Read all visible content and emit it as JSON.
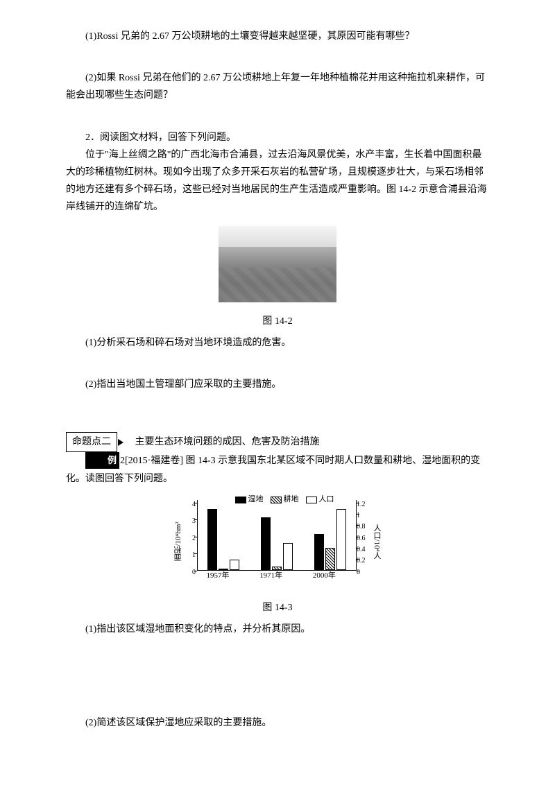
{
  "q1_1": "(1)Rossi 兄弟的 2.67 万公顷耕地的土壤变得越来越坚硬，其原因可能有哪些？",
  "q1_2": "(2)如果 Rossi 兄弟在他们的 2.67 万公顷耕地上年复一年地种植棉花并用这种拖拉机来耕作，可能会出现哪些生态问题？",
  "q2_title": "2．阅读图文材料，回答下列问题。",
  "q2_para": "位于\"海上丝绸之路\"的广西北海市合浦县，过去沿海风景优美，水产丰富，生长着中国面积最大的珍稀植物红树林。现如今出现了众多开采石灰岩的私营矿场，且规模逐步壮大，与采石场相邻的地方还建有多个碎石场，这些已经对当地居民的生产生活造成严重影响。图 14-2 示意合浦县沿海岸线铺开的连绵矿坑。",
  "fig14_2": "图 14-2",
  "q2_1": "(1)分析采石场和碎石场对当地环境造成的危害。",
  "q2_2": "(2)指出当地国土管理部门应采取的主要措施。",
  "topic2_box": "命题点二",
  "topic2_title": "主要生态环境问题的成因、危害及防治措施",
  "example_badge": "例",
  "example_no": "2",
  "example_src": "[2015·福建卷]  图 14-3 示意我国东北某区域不同时期人口数量和耕地、湿地面积的变化。读图回答下列问题。",
  "fig14_3": "图 14-3",
  "q3_1": "(1)指出该区域湿地面积变化的特点，并分析其原因。",
  "q3_2": "(2)简述该区域保护湿地应采取的主要措施。",
  "chart": {
    "legend": [
      "湿地",
      "耕地",
      "人口"
    ],
    "ylabel_left": "面积/10⁴hm²",
    "ylabel_right": "人口/10⁴人",
    "y_left": {
      "min": 0,
      "max": 4,
      "step": 1
    },
    "y_right": {
      "min": 0,
      "max": 1.2,
      "step": 0.2
    },
    "categories": [
      "1957年",
      "1971年",
      "2000年"
    ],
    "series": {
      "wetland": [
        3.6,
        3.1,
        2.1
      ],
      "farmland": [
        0.05,
        0.2,
        1.3
      ],
      "population": [
        0.6,
        1.6,
        3.6
      ]
    },
    "colors": {
      "solid": "#000000",
      "hollow": "#ffffff",
      "border": "#000000"
    }
  }
}
